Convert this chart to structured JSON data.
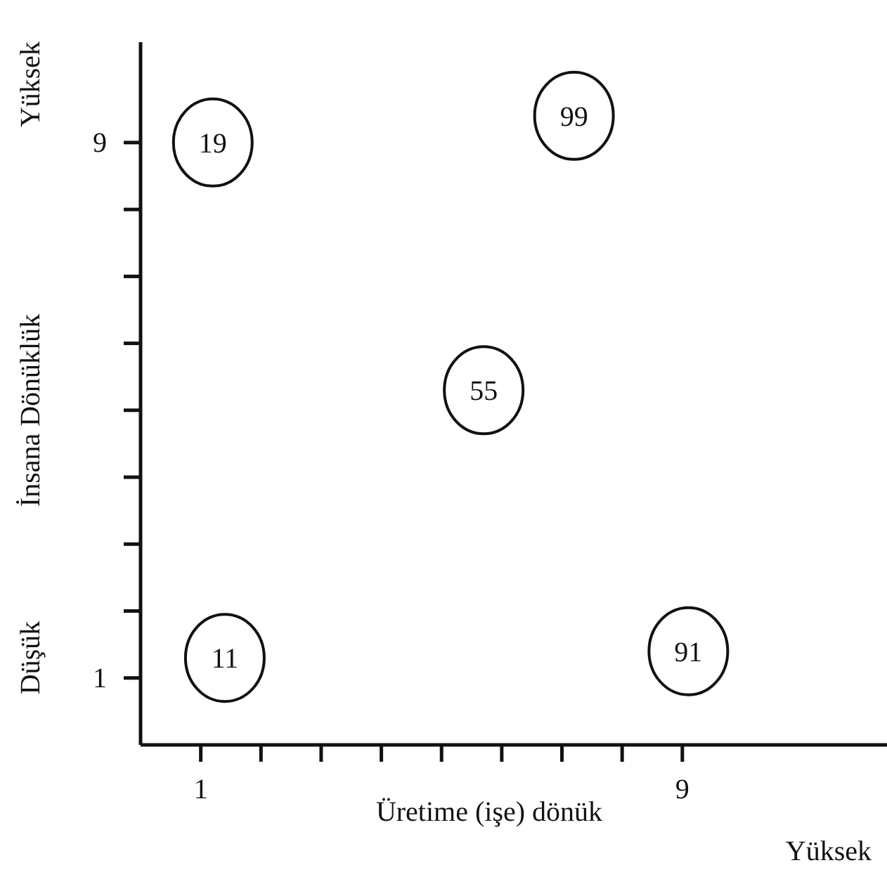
{
  "chart_data": {
    "type": "scatter",
    "xlabel": "Üretime (işe) dönük",
    "ylabel": "İnsana Dönüklük",
    "annotations": [
      "Düşük",
      "Yüksek",
      "Yüksek",
      {
        "text": "19",
        "x": 1.2,
        "y": 9.0
      },
      {
        "text": "99",
        "x": 7.2,
        "y": 9.4
      },
      {
        "text": "55",
        "x": 5.7,
        "y": 5.3
      },
      {
        "text": "11",
        "x": 1.4,
        "y": 1.3
      },
      {
        "text": "91",
        "x": 9.1,
        "y": 1.4
      }
    ],
    "x": [
      1.2,
      7.2,
      5.7,
      1.4,
      9.1
    ],
    "series": [
      {
        "color": "#111111",
        "values": [
          9.0,
          9.4,
          5.3,
          1.3,
          1.4
        ]
      }
    ],
    "marker": "circle",
    "grid": false,
    "xlim": [
      0,
      12.4
    ],
    "ylim": [
      0,
      10.5
    ],
    "xticks": [
      1,
      {
        "value": 2,
        "label": null
      },
      {
        "value": 3,
        "label": null
      },
      {
        "value": 4,
        "label": null
      },
      {
        "value": 5,
        "label": null
      },
      {
        "value": 6,
        "label": null
      },
      {
        "value": 7,
        "label": null
      },
      {
        "value": 8,
        "label": null
      },
      9
    ],
    "yticks": [
      1,
      {
        "value": 2,
        "label": null
      },
      {
        "value": 3,
        "label": null
      },
      {
        "value": 4,
        "label": null
      },
      {
        "value": 5,
        "label": null
      },
      {
        "value": 6,
        "label": null
      },
      {
        "value": 7,
        "label": null
      },
      {
        "value": 8,
        "label": null
      },
      9
    ]
  }
}
